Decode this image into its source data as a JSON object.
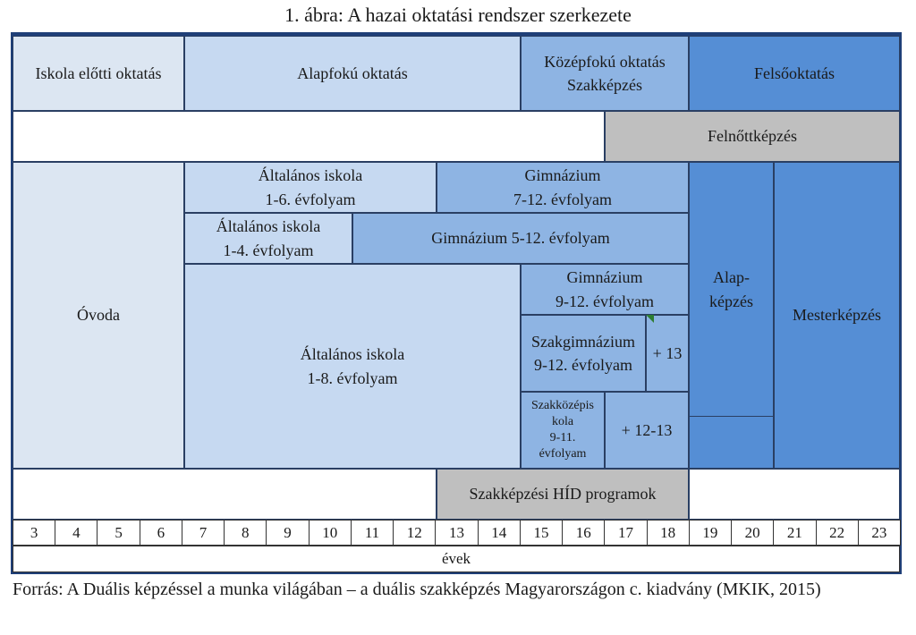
{
  "title": "1. ábra: A hazai oktatási rendszer szerkezete",
  "header": {
    "preschool": "Iskola előtti oktatás",
    "primary": "Alapfokú oktatás",
    "secondary_line1": "Középfokú oktatás",
    "secondary_line2": "Szakképzés",
    "higher": "Felsőoktatás"
  },
  "adult": "Felnőttképzés",
  "blocks": {
    "ovoda": "Óvoda",
    "alt16_l1": "Általános iskola",
    "alt16_l2": "1-6. évfolyam",
    "gim712_l1": "Gimnázium",
    "gim712_l2": "7-12. évfolyam",
    "alt14_l1": "Általános iskola",
    "alt14_l2": "1-4. évfolyam",
    "gim512": "Gimnázium 5-12. évfolyam",
    "alt18_l1": "Általános iskola",
    "alt18_l2": "1-8. évfolyam",
    "gim912_l1": "Gimnázium",
    "gim912_l2": "9-12. évfolyam",
    "szakgim_l1": "Szakgimnázium",
    "szakgim_l2": "9-12. évfolyam",
    "plus13": "+ 13",
    "szakkoz_l1": "Szakközépis",
    "szakkoz_l2": "kola",
    "szakkoz_l3": "9-11.",
    "szakkoz_l4": "évfolyam",
    "plus1213": "+ 12-13",
    "alap_l1": "Alap-",
    "alap_l2": "képzés",
    "mester": "Mesterképzés",
    "hid": "Szakképzési HÍD programok"
  },
  "axis": {
    "years": [
      "3",
      "4",
      "5",
      "6",
      "7",
      "8",
      "9",
      "10",
      "11",
      "12",
      "13",
      "14",
      "15",
      "16",
      "17",
      "18",
      "19",
      "20",
      "21",
      "22",
      "23"
    ],
    "label": "évek"
  },
  "source": "Forrás: A Duális képzéssel a munka világában – a duális szakképzés Magyarországon c. kiadvány (MKIK, 2015)",
  "colors": {
    "lightest": "#dce6f2",
    "light": "#c6d9f1",
    "medium": "#8eb4e3",
    "dark": "#558ed5",
    "gray": "#bfbfbf",
    "frame": "#1f3f78"
  }
}
